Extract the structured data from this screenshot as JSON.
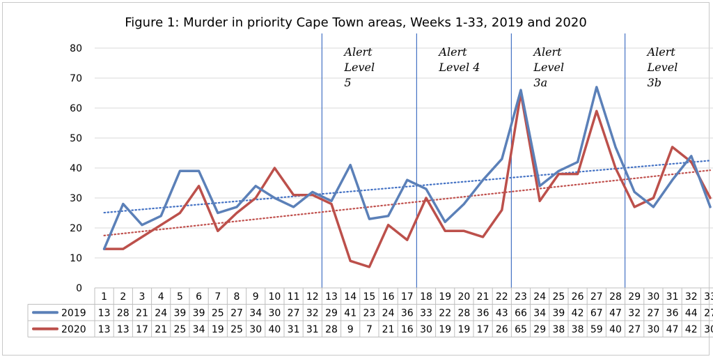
{
  "chart_data": {
    "type": "line",
    "title": "Figure 1: Murder in priority Cape Town areas, Weeks 1-33, 2019 and 2020",
    "categories": [
      "1",
      "2",
      "3",
      "4",
      "5",
      "6",
      "7",
      "8",
      "9",
      "10",
      "11",
      "12",
      "13",
      "14",
      "15",
      "16",
      "17",
      "18",
      "19",
      "20",
      "21",
      "22",
      "23",
      "24",
      "25",
      "26",
      "27",
      "28",
      "29",
      "30",
      "31",
      "32",
      "33"
    ],
    "ylim": [
      0,
      80
    ],
    "yticks": [
      0,
      10,
      20,
      30,
      40,
      50,
      60,
      70,
      80
    ],
    "grid": true,
    "legend": "bottom (data table)",
    "series": [
      {
        "name": "2019",
        "color": "#5b80b8",
        "trend_color": "#4472c4",
        "values": [
          13,
          28,
          21,
          24,
          39,
          39,
          25,
          27,
          34,
          30,
          27,
          32,
          29,
          41,
          23,
          24,
          36,
          33,
          22,
          28,
          36,
          43,
          66,
          34,
          39,
          42,
          67,
          47,
          32,
          27,
          36,
          44,
          27
        ]
      },
      {
        "name": "2020",
        "color": "#bc504b",
        "trend_color": "#c0504d",
        "values": [
          13,
          13,
          17,
          21,
          25,
          34,
          19,
          25,
          30,
          40,
          31,
          31,
          28,
          9,
          7,
          21,
          16,
          30,
          19,
          19,
          17,
          26,
          65,
          29,
          38,
          38,
          59,
          40,
          27,
          30,
          47,
          42,
          30
        ]
      }
    ],
    "annotations": [
      {
        "lines": [
          "Alert",
          "Level",
          "5"
        ],
        "after_week": 12
      },
      {
        "lines": [
          "Alert",
          "Level 4"
        ],
        "after_week": 17
      },
      {
        "lines": [
          "Alert",
          "Level",
          "3a"
        ],
        "after_week": 22
      },
      {
        "lines": [
          "Alert",
          "Level",
          "3b"
        ],
        "after_week": 28
      }
    ]
  }
}
